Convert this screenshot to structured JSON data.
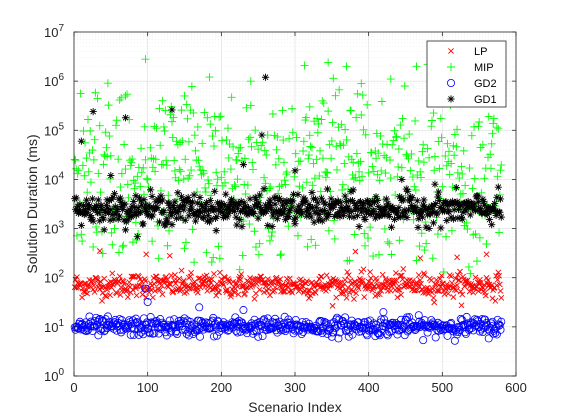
{
  "chart_data": {
    "type": "scatter",
    "xlabel": "Scenario Index",
    "ylabel": "Solution Duration (ms)",
    "xlim": [
      0,
      600
    ],
    "ylim": [
      1,
      10000000
    ],
    "yscale": "log",
    "xticks": [
      0,
      100,
      200,
      300,
      400,
      500,
      600
    ],
    "xtick_labels": [
      "0",
      "100",
      "200",
      "300",
      "400",
      "500",
      "600"
    ],
    "yticks": [
      1,
      10,
      100,
      1000,
      10000,
      100000,
      1000000,
      10000000
    ],
    "ytick_labels": [
      {
        "base": "10",
        "exp": "0"
      },
      {
        "base": "10",
        "exp": "1"
      },
      {
        "base": "10",
        "exp": "2"
      },
      {
        "base": "10",
        "exp": "3"
      },
      {
        "base": "10",
        "exp": "4"
      },
      {
        "base": "10",
        "exp": "5"
      },
      {
        "base": "10",
        "exp": "6"
      },
      {
        "base": "10",
        "exp": "7"
      }
    ],
    "grid": true,
    "legend_position": "top-right",
    "n_points": 580,
    "series": [
      {
        "name": "LP",
        "marker": "x",
        "color": "#ff0000",
        "typical_ms": 70,
        "spread_log10": 0.12,
        "outliers_ms": [
          [
            35,
            350
          ],
          [
            98,
            300
          ],
          [
            130,
            280
          ],
          [
            382,
            340
          ],
          [
            470,
            250
          ],
          [
            520,
            260
          ],
          [
            560,
            300
          ]
        ]
      },
      {
        "name": "MIP",
        "marker": "+",
        "color": "#00ff00",
        "typical_ms": 20000,
        "spread_log10": 0.75,
        "outliers_ms": [
          [
            97,
            2800000
          ],
          [
            558,
            2000000
          ],
          [
            465,
            2000000
          ],
          [
            480,
            2200000
          ],
          [
            345,
            2400000
          ],
          [
            370,
            2000000
          ],
          [
            240,
            1000000
          ],
          [
            430,
            1100000
          ],
          [
            390,
            900000
          ],
          [
            150,
            500000
          ],
          [
            120,
            400000
          ],
          [
            70,
            500000
          ],
          [
            320,
            300000
          ]
        ]
      },
      {
        "name": "GD2",
        "marker": "o",
        "color": "#0000ff",
        "typical_ms": 10,
        "spread_log10": 0.09,
        "outliers_ms": [
          [
            97,
            60
          ],
          [
            100,
            32
          ],
          [
            230,
            22
          ],
          [
            420,
            20
          ],
          [
            170,
            25
          ]
        ]
      },
      {
        "name": "GD1",
        "marker": "*",
        "color": "#000000",
        "typical_ms": 2500,
        "spread_log10": 0.15,
        "outliers_ms": [
          [
            260,
            1200000
          ],
          [
            26,
            240000
          ],
          [
            133,
            260000
          ],
          [
            70,
            180000
          ],
          [
            10,
            60000
          ],
          [
            255,
            80000
          ],
          [
            230,
            20000
          ],
          [
            490,
            8000
          ],
          [
            445,
            10000
          ],
          [
            50,
            12000
          ],
          [
            300,
            15000
          ]
        ]
      }
    ]
  }
}
